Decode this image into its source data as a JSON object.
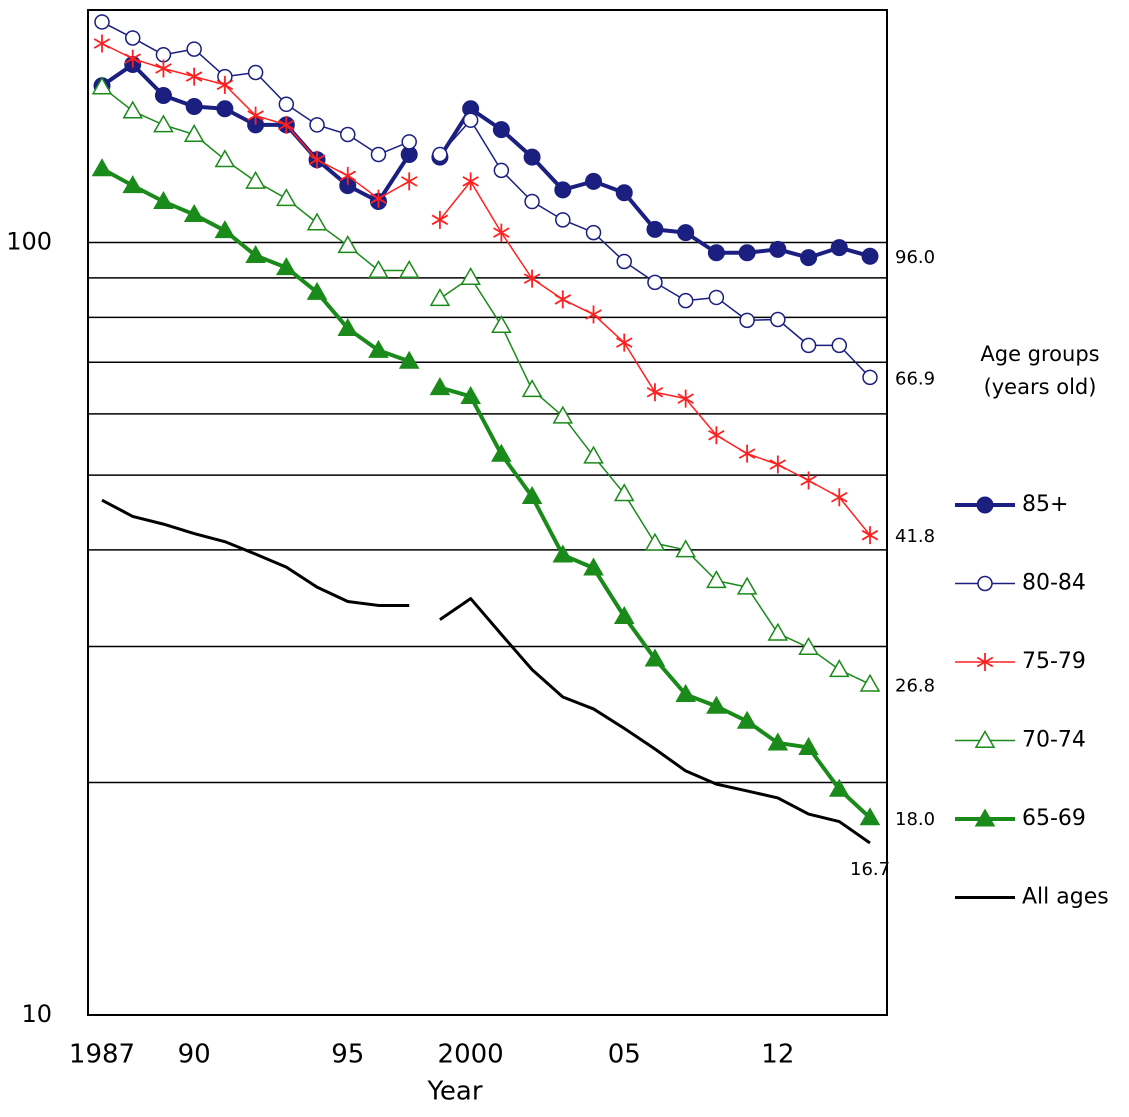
{
  "chart_data": {
    "type": "line",
    "x_label": "Year",
    "categories": [
      "1987",
      null,
      null,
      "90",
      null,
      null,
      null,
      null,
      "95",
      null,
      null,
      null,
      "2000",
      null,
      null,
      null,
      null,
      "05",
      null,
      null,
      null,
      null,
      "12",
      null,
      null,
      null
    ],
    "segment_break_after": 10,
    "log_scale": true,
    "ylim": [
      10,
      200
    ],
    "yticks": [
      10,
      100
    ],
    "gridlines": [
      20,
      30,
      40,
      50,
      60,
      70,
      80,
      90,
      100
    ],
    "legend_title": [
      "Age groups",
      "(years old)"
    ],
    "legend_position": "right",
    "series": [
      {
        "name": "85+",
        "color": "#1a1f80",
        "marker": "filled-circle",
        "line_width": 4,
        "values": [
          159.6,
          170,
          155,
          150,
          149,
          142,
          142,
          128,
          118.5,
          113,
          130,
          129,
          149,
          140,
          129,
          117,
          120,
          116,
          104,
          103,
          97,
          97,
          98,
          95.6,
          98.5,
          96.0
        ],
        "value_labels": [
          null,
          null,
          null,
          null,
          null,
          null,
          null,
          null,
          null,
          null,
          null,
          null,
          null,
          null,
          null,
          null,
          null,
          null,
          null,
          null,
          null,
          null,
          null,
          null,
          null,
          "96.0"
        ]
      },
      {
        "name": "80-84",
        "color": "#1a1f80",
        "marker": "open-circle",
        "line_width": 1.5,
        "values": [
          193,
          184,
          175,
          178,
          164,
          166,
          151,
          142,
          138,
          130,
          135,
          130,
          144,
          124,
          113,
          107,
          103,
          94.5,
          88.8,
          84.1,
          84.9,
          79.3,
          79.5,
          73.6,
          73.6,
          66.9
        ],
        "value_labels": [
          null,
          null,
          null,
          null,
          null,
          null,
          null,
          null,
          null,
          null,
          null,
          null,
          null,
          null,
          null,
          null,
          null,
          null,
          null,
          null,
          null,
          null,
          null,
          null,
          null,
          "66.9"
        ]
      },
      {
        "name": "75-79",
        "color": "#ff2020",
        "marker": "star",
        "line_width": 1.5,
        "values": [
          181,
          173,
          168,
          164,
          160,
          146,
          142,
          128,
          122,
          114,
          120,
          107,
          120,
          103,
          89.8,
          84.4,
          80.7,
          74.2,
          64.0,
          62.8,
          56.3,
          53.3,
          51.6,
          49.2,
          46.8,
          41.8
        ],
        "value_labels": [
          null,
          null,
          null,
          null,
          null,
          null,
          null,
          null,
          null,
          null,
          null,
          null,
          null,
          null,
          null,
          null,
          null,
          null,
          null,
          null,
          null,
          null,
          null,
          null,
          null,
          "41.8"
        ]
      },
      {
        "name": "70-74",
        "color": "#1a8a1a",
        "marker": "open-triangle",
        "line_width": 1.5,
        "values": [
          159,
          148,
          142,
          138,
          128,
          120,
          114,
          106,
          99.1,
          92.0,
          92.0,
          84.6,
          90.1,
          78.1,
          64.5,
          59.6,
          52.9,
          47.3,
          40.8,
          40.0,
          36.5,
          35.8,
          31.2,
          29.9,
          28.0,
          26.8
        ],
        "value_labels": [
          null,
          null,
          null,
          null,
          null,
          null,
          null,
          null,
          null,
          null,
          null,
          null,
          null,
          null,
          null,
          null,
          null,
          null,
          null,
          null,
          null,
          null,
          null,
          null,
          null,
          "26.8"
        ]
      },
      {
        "name": "65-69",
        "color": "#1a8a1a",
        "marker": "filled-triangle",
        "line_width": 4,
        "values": [
          124.6,
          118.5,
          113,
          108.7,
          103.6,
          96.2,
          92.8,
          86.2,
          77.4,
          72.5,
          70.2,
          64.9,
          63.2,
          53.2,
          46.9,
          39.4,
          37.9,
          32.8,
          28.9,
          26.0,
          25.1,
          24.0,
          22.5,
          22.2,
          19.6,
          18.0
        ],
        "value_labels": [
          null,
          null,
          null,
          null,
          null,
          null,
          null,
          null,
          null,
          null,
          null,
          null,
          null,
          null,
          null,
          null,
          null,
          null,
          null,
          null,
          null,
          null,
          null,
          null,
          null,
          "18.0"
        ]
      },
      {
        "name": "All ages",
        "color": "#000000",
        "marker": "none",
        "line_width": 3,
        "values": [
          46.4,
          44.2,
          43.2,
          42.0,
          41.0,
          39.5,
          38.0,
          35.8,
          34.3,
          33.9,
          33.9,
          32.5,
          34.6,
          31.1,
          28.0,
          25.8,
          24.9,
          23.5,
          22.1,
          20.7,
          19.9,
          19.5,
          19.1,
          18.2,
          17.8,
          16.7
        ],
        "value_labels": [
          null,
          null,
          null,
          null,
          null,
          null,
          null,
          null,
          null,
          null,
          null,
          null,
          null,
          null,
          null,
          null,
          null,
          null,
          null,
          null,
          null,
          null,
          null,
          null,
          null,
          "16.7"
        ]
      }
    ]
  }
}
